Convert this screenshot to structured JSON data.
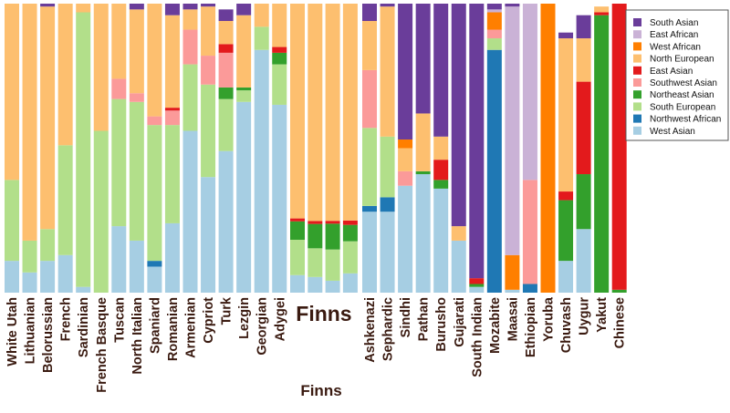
{
  "chart_data": {
    "type": "bar",
    "stacked": true,
    "normalized": true,
    "ylim": [
      0,
      1
    ],
    "grid": false,
    "legend_position": "top-right",
    "xlabel": "Finns",
    "highlighted_category": "Finns",
    "categories": [
      "White Utah",
      "Lithuanian",
      "Belorussian",
      "French",
      "Sardinian",
      "French Basque",
      "Tuscan",
      "North Italian",
      "Spaniard",
      "Romanian",
      "Armenian",
      "Cypriot",
      "Turk",
      "Lezgin",
      "Georgian",
      "Adygei",
      "Finns",
      "Ashkenazi",
      "Sephardic",
      "Sindhi",
      "Pathan",
      "Burusho",
      "Gujarati",
      "South Indian",
      "Mozabite",
      "Maasai",
      "Ethiopian",
      "Yoruba",
      "Chuvash",
      "Uygur",
      "Yakut",
      "Chinese"
    ],
    "series": [
      {
        "name": "West Asian",
        "color": "#a6cee3",
        "values": [
          0.11,
          0.07,
          0.11,
          0.13,
          0.02,
          0.0,
          0.23,
          0.18,
          0.09,
          0.24,
          0.56,
          0.4,
          0.49,
          0.66,
          0.84,
          0.65,
          0.06,
          0.28,
          0.28,
          0.37,
          0.41,
          0.36,
          0.18,
          0.02,
          0.0,
          0.01,
          0.0,
          0.0,
          0.11,
          0.22,
          0.0,
          0.0
        ]
      },
      {
        "name": "Northwest African",
        "color": "#1f78b4",
        "values": [
          0.0,
          0.0,
          0.0,
          0.0,
          0.0,
          0.0,
          0.0,
          0.0,
          0.02,
          0.0,
          0.0,
          0.0,
          0.0,
          0.0,
          0.0,
          0.0,
          0.0,
          0.02,
          0.05,
          0.0,
          0.0,
          0.0,
          0.0,
          0.0,
          0.84,
          0.0,
          0.03,
          0.0,
          0.0,
          0.0,
          0.0,
          0.0
        ]
      },
      {
        "name": "South European",
        "color": "#b2df8a",
        "values": [
          0.28,
          0.11,
          0.11,
          0.38,
          0.95,
          0.56,
          0.44,
          0.48,
          0.47,
          0.34,
          0.23,
          0.32,
          0.18,
          0.04,
          0.08,
          0.14,
          0.11,
          0.27,
          0.21,
          0.0,
          0.0,
          0.0,
          0.0,
          0.0,
          0.04,
          0.0,
          0.0,
          0.0,
          0.0,
          0.0,
          0.0,
          0.0
        ]
      },
      {
        "name": "Northeast Asian",
        "color": "#33a02c",
        "values": [
          0.0,
          0.0,
          0.0,
          0.0,
          0.0,
          0.0,
          0.0,
          0.0,
          0.0,
          0.0,
          0.0,
          0.0,
          0.04,
          0.01,
          0.0,
          0.04,
          0.07,
          0.0,
          0.0,
          0.0,
          0.01,
          0.03,
          0.0,
          0.01,
          0.0,
          0.0,
          0.0,
          0.0,
          0.21,
          0.19,
          0.96,
          0.01
        ]
      },
      {
        "name": "Southwest Asian",
        "color": "#fb9a99",
        "values": [
          0.0,
          0.0,
          0.0,
          0.0,
          0.0,
          0.0,
          0.07,
          0.03,
          0.03,
          0.05,
          0.12,
          0.1,
          0.12,
          0.0,
          0.0,
          0.0,
          0.0,
          0.2,
          0.0,
          0.05,
          0.0,
          0.0,
          0.0,
          0.0,
          0.03,
          0.0,
          0.36,
          0.0,
          0.0,
          0.0,
          0.0,
          0.0
        ]
      },
      {
        "name": "East Asian",
        "color": "#e31a1c",
        "values": [
          0.0,
          0.0,
          0.0,
          0.0,
          0.0,
          0.0,
          0.0,
          0.0,
          0.0,
          0.01,
          0.0,
          0.0,
          0.03,
          0.0,
          0.0,
          0.02,
          0.01,
          0.0,
          0.0,
          0.0,
          0.0,
          0.07,
          0.0,
          0.02,
          0.0,
          0.0,
          0.0,
          0.0,
          0.03,
          0.32,
          0.01,
          0.99
        ]
      },
      {
        "name": "North European",
        "color": "#fdbf6f",
        "values": [
          0.61,
          0.82,
          0.77,
          0.49,
          0.03,
          0.44,
          0.26,
          0.29,
          0.39,
          0.32,
          0.07,
          0.17,
          0.08,
          0.25,
          0.08,
          0.15,
          0.75,
          0.17,
          0.45,
          0.08,
          0.2,
          0.08,
          0.05,
          0.0,
          0.0,
          0.0,
          0.0,
          0.0,
          0.53,
          0.15,
          0.02,
          0.0
        ]
      },
      {
        "name": "West African",
        "color": "#ff7f00",
        "values": [
          0.0,
          0.0,
          0.0,
          0.0,
          0.0,
          0.0,
          0.0,
          0.0,
          0.0,
          0.0,
          0.0,
          0.0,
          0.0,
          0.0,
          0.0,
          0.0,
          0.0,
          0.0,
          0.0,
          0.03,
          0.0,
          0.0,
          0.0,
          0.0,
          0.06,
          0.12,
          0.0,
          1.0,
          0.0,
          0.0,
          0.0,
          0.0
        ]
      },
      {
        "name": "East African",
        "color": "#cab2d6",
        "values": [
          0.0,
          0.0,
          0.0,
          0.0,
          0.0,
          0.0,
          0.0,
          0.0,
          0.0,
          0.0,
          0.0,
          0.0,
          0.0,
          0.0,
          0.0,
          0.0,
          0.0,
          0.0,
          0.0,
          0.0,
          0.0,
          0.0,
          0.0,
          0.0,
          0.01,
          0.86,
          0.61,
          0.0,
          0.0,
          0.0,
          0.0,
          0.0
        ]
      },
      {
        "name": "South Asian",
        "color": "#6a3d9a",
        "values": [
          0.0,
          0.0,
          0.01,
          0.0,
          0.0,
          0.0,
          0.0,
          0.02,
          0.0,
          0.04,
          0.02,
          0.01,
          0.04,
          0.04,
          0.0,
          0.0,
          0.0,
          0.06,
          0.01,
          0.47,
          0.38,
          0.46,
          0.77,
          0.95,
          0.02,
          0.01,
          0.0,
          0.0,
          0.02,
          0.08,
          0.0,
          0.0
        ]
      }
    ],
    "legend_order": [
      "South Asian",
      "East African",
      "West African",
      "North European",
      "East Asian",
      "Southwest Asian",
      "Northeast Asian",
      "South European",
      "Northwest African",
      "West Asian"
    ]
  }
}
